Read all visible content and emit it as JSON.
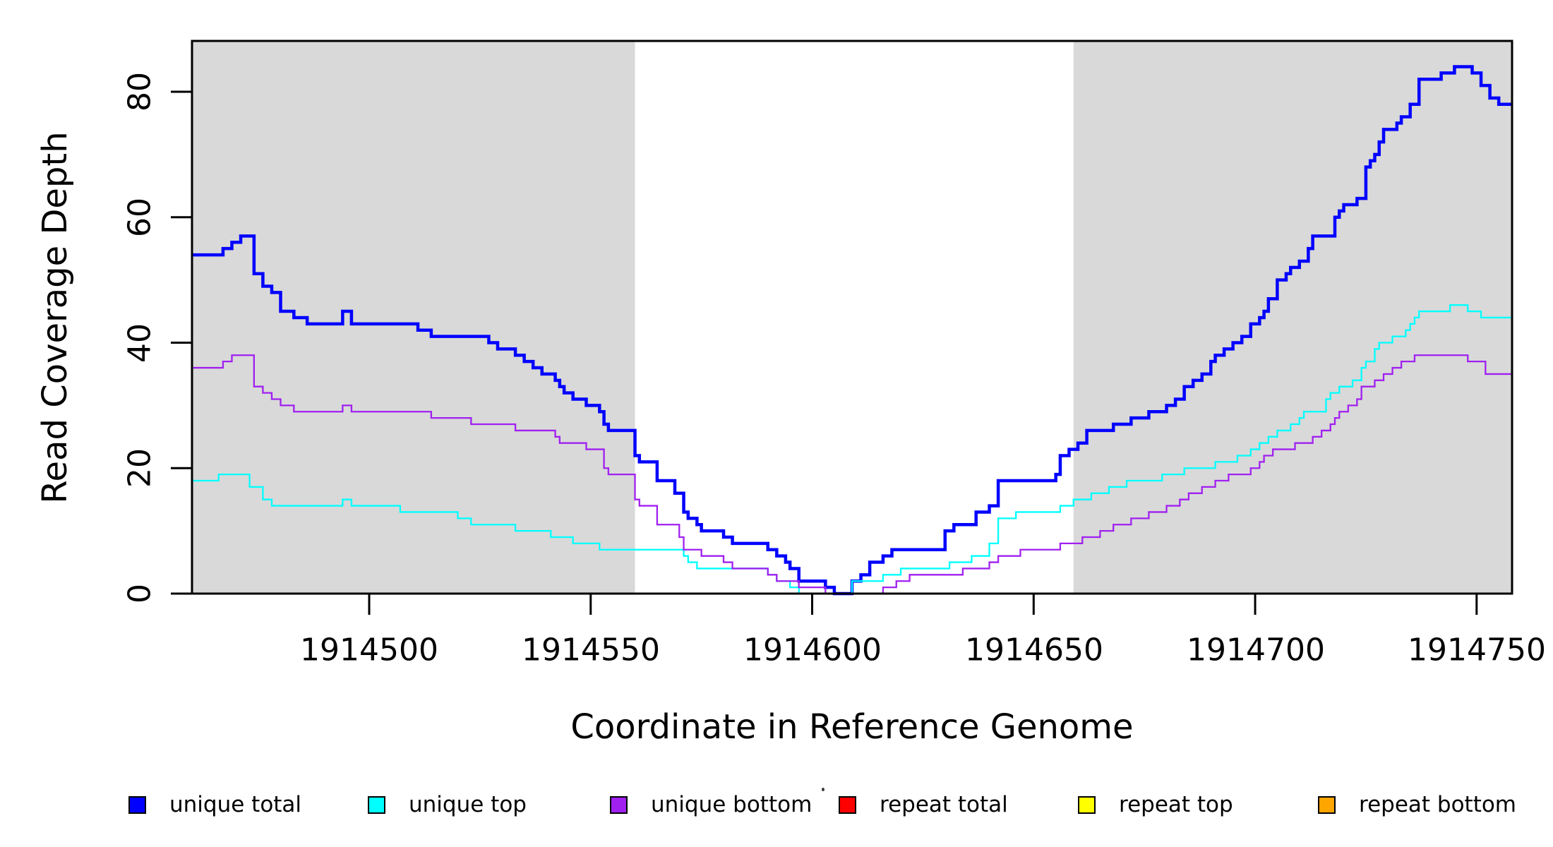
{
  "figure": {
    "kind": "read coverage depth plot"
  },
  "x_axis": {
    "label": "Coordinate in Reference Genome",
    "tick_labels": [
      "1914500",
      "1914550",
      "1914600",
      "1914650",
      "1914700",
      "1914750"
    ],
    "tick_values": [
      1914500,
      1914550,
      1914600,
      1914650,
      1914700,
      1914750
    ]
  },
  "y_axis": {
    "label": "Read Coverage Depth",
    "tick_labels": [
      "0",
      "20",
      "40",
      "60",
      "80"
    ],
    "tick_values": [
      0,
      20,
      40,
      60,
      80
    ]
  },
  "legend": {
    "items": [
      {
        "label": "unique total",
        "color": "#0000ff"
      },
      {
        "label": "unique top",
        "color": "#00ffff"
      },
      {
        "label": "unique bottom",
        "color": "#a020f0"
      },
      {
        "label": "repeat total",
        "color": "#ff0000"
      },
      {
        "label": "repeat top",
        "color": "#ffff00"
      },
      {
        "label": "repeat bottom",
        "color": "#ffa500"
      }
    ]
  },
  "chart_data": {
    "type": "line",
    "subtype": "step",
    "title": "",
    "xlabel": "Coordinate in Reference Genome",
    "ylabel": "Read Coverage Depth",
    "xlim": [
      1914460,
      1914758
    ],
    "ylim": [
      0,
      88.1
    ],
    "grid": false,
    "legend_position": "bottom",
    "shaded_regions": [
      {
        "from": 1914460,
        "to": 1914560,
        "color": "#d9d9d9",
        "meaning": "unique (shaded) region"
      },
      {
        "from": 1914659,
        "to": 1914758,
        "color": "#d9d9d9",
        "meaning": "unique (shaded) region"
      }
    ],
    "series": [
      {
        "name": "unique total",
        "color": "#0000ff",
        "line_width": 4.5,
        "points": [
          [
            1914460,
            54
          ],
          [
            1914467,
            55
          ],
          [
            1914469,
            56
          ],
          [
            1914471,
            57
          ],
          [
            1914474,
            51
          ],
          [
            1914476,
            49
          ],
          [
            1914478,
            48
          ],
          [
            1914480,
            45
          ],
          [
            1914483,
            44
          ],
          [
            1914486,
            43
          ],
          [
            1914494,
            45
          ],
          [
            1914496,
            43
          ],
          [
            1914511,
            42
          ],
          [
            1914514,
            41
          ],
          [
            1914527,
            40
          ],
          [
            1914529,
            39
          ],
          [
            1914533,
            38
          ],
          [
            1914535,
            37
          ],
          [
            1914537,
            36
          ],
          [
            1914539,
            35
          ],
          [
            1914542,
            34
          ],
          [
            1914543,
            33
          ],
          [
            1914544,
            32
          ],
          [
            1914546,
            31
          ],
          [
            1914549,
            30
          ],
          [
            1914552,
            29
          ],
          [
            1914553,
            27
          ],
          [
            1914554,
            26
          ],
          [
            1914560,
            22
          ],
          [
            1914561,
            21
          ],
          [
            1914565,
            18
          ],
          [
            1914569,
            16
          ],
          [
            1914571,
            13
          ],
          [
            1914572,
            12
          ],
          [
            1914574,
            11
          ],
          [
            1914575,
            10
          ],
          [
            1914580,
            9
          ],
          [
            1914582,
            8
          ],
          [
            1914590,
            7
          ],
          [
            1914592,
            6
          ],
          [
            1914594,
            5
          ],
          [
            1914595,
            4
          ],
          [
            1914597,
            2
          ],
          [
            1914603,
            1
          ],
          [
            1914605,
            0
          ],
          [
            1914609,
            2
          ],
          [
            1914611,
            3
          ],
          [
            1914613,
            5
          ],
          [
            1914616,
            6
          ],
          [
            1914618,
            7
          ],
          [
            1914630,
            10
          ],
          [
            1914632,
            11
          ],
          [
            1914637,
            13
          ],
          [
            1914640,
            14
          ],
          [
            1914642,
            18
          ],
          [
            1914655,
            19
          ],
          [
            1914656,
            22
          ],
          [
            1914658,
            23
          ],
          [
            1914660,
            24
          ],
          [
            1914662,
            26
          ],
          [
            1914668,
            27
          ],
          [
            1914672,
            28
          ],
          [
            1914676,
            29
          ],
          [
            1914680,
            30
          ],
          [
            1914682,
            31
          ],
          [
            1914684,
            33
          ],
          [
            1914686,
            34
          ],
          [
            1914688,
            35
          ],
          [
            1914690,
            37
          ],
          [
            1914691,
            38
          ],
          [
            1914693,
            39
          ],
          [
            1914695,
            40
          ],
          [
            1914697,
            41
          ],
          [
            1914699,
            43
          ],
          [
            1914701,
            44
          ],
          [
            1914702,
            45
          ],
          [
            1914703,
            47
          ],
          [
            1914705,
            50
          ],
          [
            1914707,
            51
          ],
          [
            1914708,
            52
          ],
          [
            1914710,
            53
          ],
          [
            1914712,
            55
          ],
          [
            1914713,
            57
          ],
          [
            1914718,
            60
          ],
          [
            1914719,
            61
          ],
          [
            1914720,
            62
          ],
          [
            1914723,
            63
          ],
          [
            1914725,
            68
          ],
          [
            1914726,
            69
          ],
          [
            1914727,
            70
          ],
          [
            1914728,
            72
          ],
          [
            1914729,
            74
          ],
          [
            1914732,
            75
          ],
          [
            1914733,
            76
          ],
          [
            1914735,
            78
          ],
          [
            1914737,
            82
          ],
          [
            1914742,
            83
          ],
          [
            1914745,
            84
          ],
          [
            1914749,
            83
          ],
          [
            1914751,
            81
          ],
          [
            1914753,
            79
          ],
          [
            1914755,
            78
          ]
        ]
      },
      {
        "name": "unique top",
        "color": "#00ffff",
        "line_width": 2.3,
        "points": [
          [
            1914460,
            18
          ],
          [
            1914466,
            19
          ],
          [
            1914473,
            17
          ],
          [
            1914476,
            15
          ],
          [
            1914478,
            14
          ],
          [
            1914494,
            15
          ],
          [
            1914496,
            14
          ],
          [
            1914507,
            13
          ],
          [
            1914520,
            12
          ],
          [
            1914523,
            11
          ],
          [
            1914533,
            10
          ],
          [
            1914541,
            9
          ],
          [
            1914546,
            8
          ],
          [
            1914552,
            7
          ],
          [
            1914571,
            6
          ],
          [
            1914572,
            5
          ],
          [
            1914574,
            4
          ],
          [
            1914590,
            3
          ],
          [
            1914592,
            2
          ],
          [
            1914595,
            1
          ],
          [
            1914597,
            0
          ],
          [
            1914609,
            2
          ],
          [
            1914616,
            3
          ],
          [
            1914620,
            4
          ],
          [
            1914631,
            5
          ],
          [
            1914636,
            6
          ],
          [
            1914640,
            8
          ],
          [
            1914642,
            12
          ],
          [
            1914646,
            13
          ],
          [
            1914656,
            14
          ],
          [
            1914659,
            15
          ],
          [
            1914663,
            16
          ],
          [
            1914667,
            17
          ],
          [
            1914671,
            18
          ],
          [
            1914679,
            19
          ],
          [
            1914684,
            20
          ],
          [
            1914691,
            21
          ],
          [
            1914696,
            22
          ],
          [
            1914699,
            23
          ],
          [
            1914701,
            24
          ],
          [
            1914703,
            25
          ],
          [
            1914705,
            26
          ],
          [
            1914708,
            27
          ],
          [
            1914710,
            28
          ],
          [
            1914711,
            29
          ],
          [
            1914716,
            31
          ],
          [
            1914717,
            32
          ],
          [
            1914719,
            33
          ],
          [
            1914722,
            34
          ],
          [
            1914724,
            36
          ],
          [
            1914725,
            37
          ],
          [
            1914727,
            39
          ],
          [
            1914728,
            40
          ],
          [
            1914731,
            41
          ],
          [
            1914734,
            42
          ],
          [
            1914735,
            43
          ],
          [
            1914736,
            44
          ],
          [
            1914737,
            45
          ],
          [
            1914744,
            46
          ],
          [
            1914748,
            45
          ],
          [
            1914751,
            44
          ]
        ]
      },
      {
        "name": "unique bottom",
        "color": "#a020f0",
        "line_width": 2.3,
        "points": [
          [
            1914460,
            36
          ],
          [
            1914467,
            37
          ],
          [
            1914469,
            38
          ],
          [
            1914474,
            33
          ],
          [
            1914476,
            32
          ],
          [
            1914478,
            31
          ],
          [
            1914480,
            30
          ],
          [
            1914483,
            29
          ],
          [
            1914494,
            30
          ],
          [
            1914496,
            29
          ],
          [
            1914514,
            28
          ],
          [
            1914523,
            27
          ],
          [
            1914533,
            26
          ],
          [
            1914542,
            25
          ],
          [
            1914543,
            24
          ],
          [
            1914549,
            23
          ],
          [
            1914553,
            20
          ],
          [
            1914554,
            19
          ],
          [
            1914560,
            15
          ],
          [
            1914561,
            14
          ],
          [
            1914565,
            11
          ],
          [
            1914570,
            9
          ],
          [
            1914571,
            7
          ],
          [
            1914575,
            6
          ],
          [
            1914580,
            5
          ],
          [
            1914582,
            4
          ],
          [
            1914590,
            3
          ],
          [
            1914592,
            2
          ],
          [
            1914597,
            1
          ],
          [
            1914603,
            0
          ],
          [
            1914616,
            1
          ],
          [
            1914619,
            2
          ],
          [
            1914622,
            3
          ],
          [
            1914634,
            4
          ],
          [
            1914640,
            5
          ],
          [
            1914642,
            6
          ],
          [
            1914647,
            7
          ],
          [
            1914656,
            8
          ],
          [
            1914661,
            9
          ],
          [
            1914665,
            10
          ],
          [
            1914668,
            11
          ],
          [
            1914672,
            12
          ],
          [
            1914676,
            13
          ],
          [
            1914680,
            14
          ],
          [
            1914683,
            15
          ],
          [
            1914685,
            16
          ],
          [
            1914688,
            17
          ],
          [
            1914691,
            18
          ],
          [
            1914694,
            19
          ],
          [
            1914699,
            20
          ],
          [
            1914701,
            21
          ],
          [
            1914702,
            22
          ],
          [
            1914704,
            23
          ],
          [
            1914709,
            24
          ],
          [
            1914713,
            25
          ],
          [
            1914715,
            26
          ],
          [
            1914717,
            27
          ],
          [
            1914718,
            28
          ],
          [
            1914719,
            29
          ],
          [
            1914721,
            30
          ],
          [
            1914723,
            31
          ],
          [
            1914724,
            33
          ],
          [
            1914727,
            34
          ],
          [
            1914729,
            35
          ],
          [
            1914731,
            36
          ],
          [
            1914733,
            37
          ],
          [
            1914736,
            38
          ],
          [
            1914748,
            37
          ],
          [
            1914752,
            35
          ]
        ]
      },
      {
        "name": "repeat total",
        "color": "#ff0000",
        "line_width": 2.3,
        "points": [
          [
            1914460,
            0
          ]
        ]
      },
      {
        "name": "repeat top",
        "color": "#ffff00",
        "line_width": 2.3,
        "points": [
          [
            1914460,
            0
          ]
        ]
      },
      {
        "name": "repeat bottom",
        "color": "#ffa500",
        "line_width": 3,
        "points": [
          [
            1914460,
            0
          ]
        ]
      }
    ]
  }
}
